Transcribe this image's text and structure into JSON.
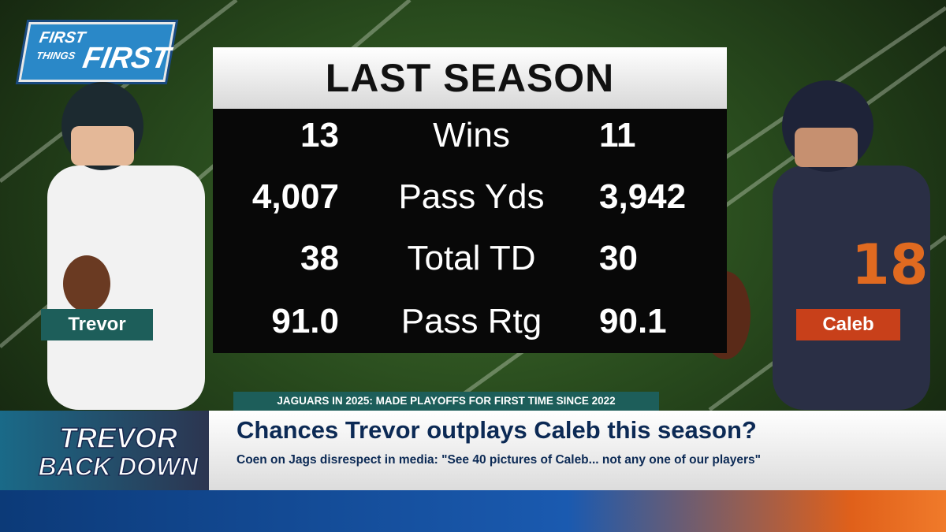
{
  "logo": {
    "top": "FIRST",
    "middle": "THINGS",
    "bottom": "FIRST"
  },
  "table": {
    "title": "LAST SEASON",
    "rows": [
      [
        "13",
        "Wins",
        "11"
      ],
      [
        "4,007",
        "Pass Yds",
        "3,942"
      ],
      [
        "38",
        "Total TD",
        "30"
      ],
      [
        "91.0",
        "Pass Rtg",
        "90.1"
      ]
    ]
  },
  "players": {
    "left": "Trevor",
    "right": "Caleb"
  },
  "lower_third": {
    "ticker": "JAGUARS IN 2025: MADE PLAYOFFS FOR FIRST TIME SINCE 2022",
    "headline": "Chances Trevor outplays Caleb this season?",
    "subhead": "Coen on Jags disrespect in media: \"See 40 pictures of Caleb... not any one of our players\""
  },
  "promo": {
    "line1": "TREVOR",
    "line2": "BACK DOWN"
  }
}
